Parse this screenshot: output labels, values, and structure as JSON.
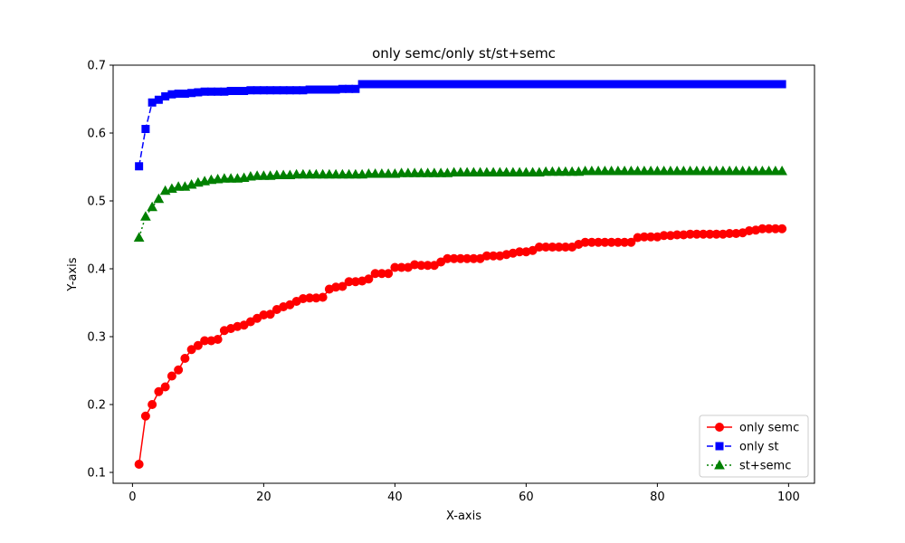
{
  "chart_data": {
    "type": "line",
    "title": "only semc/only st/st+semc",
    "xlabel": "X-axis",
    "ylabel": "Y-axis",
    "xlim": [
      -2.95,
      103.95
    ],
    "ylim": [
      0.084,
      0.7
    ],
    "xticks": [
      0,
      20,
      40,
      60,
      80,
      100
    ],
    "yticks": [
      0.1,
      0.2,
      0.3,
      0.4,
      0.5,
      0.6,
      0.7
    ],
    "grid": false,
    "legend_position": "lower-right",
    "x": [
      1,
      2,
      3,
      4,
      5,
      6,
      7,
      8,
      9,
      10,
      11,
      12,
      13,
      14,
      15,
      16,
      17,
      18,
      19,
      20,
      21,
      22,
      23,
      24,
      25,
      26,
      27,
      28,
      29,
      30,
      31,
      32,
      33,
      34,
      35,
      36,
      37,
      38,
      39,
      40,
      41,
      42,
      43,
      44,
      45,
      46,
      47,
      48,
      49,
      50,
      51,
      52,
      53,
      54,
      55,
      56,
      57,
      58,
      59,
      60,
      61,
      62,
      63,
      64,
      65,
      66,
      67,
      68,
      69,
      70,
      71,
      72,
      73,
      74,
      75,
      76,
      77,
      78,
      79,
      80,
      81,
      82,
      83,
      84,
      85,
      86,
      87,
      88,
      89,
      90,
      91,
      92,
      93,
      94,
      95,
      96,
      97,
      98,
      99
    ],
    "series": [
      {
        "name": "only semc",
        "color": "#ff0000",
        "line_style": "solid",
        "marker": "circle",
        "values": [
          0.112,
          0.183,
          0.2,
          0.219,
          0.226,
          0.242,
          0.251,
          0.268,
          0.281,
          0.287,
          0.294,
          0.294,
          0.296,
          0.309,
          0.312,
          0.315,
          0.317,
          0.322,
          0.327,
          0.332,
          0.333,
          0.34,
          0.344,
          0.347,
          0.352,
          0.356,
          0.357,
          0.357,
          0.358,
          0.37,
          0.373,
          0.374,
          0.381,
          0.381,
          0.382,
          0.385,
          0.393,
          0.393,
          0.393,
          0.402,
          0.402,
          0.402,
          0.406,
          0.405,
          0.405,
          0.405,
          0.41,
          0.415,
          0.415,
          0.415,
          0.415,
          0.415,
          0.415,
          0.419,
          0.419,
          0.419,
          0.421,
          0.423,
          0.425,
          0.425,
          0.427,
          0.432,
          0.432,
          0.432,
          0.432,
          0.432,
          0.432,
          0.436,
          0.439,
          0.439,
          0.439,
          0.439,
          0.439,
          0.439,
          0.439,
          0.439,
          0.446,
          0.447,
          0.447,
          0.447,
          0.449,
          0.449,
          0.45,
          0.45,
          0.451,
          0.451,
          0.451,
          0.451,
          0.451,
          0.451,
          0.452,
          0.452,
          0.453,
          0.456,
          0.457,
          0.459,
          0.459,
          0.459,
          0.459
        ]
      },
      {
        "name": "only st",
        "color": "#0000ff",
        "line_style": "dashed",
        "marker": "square",
        "values": [
          0.551,
          0.606,
          0.645,
          0.649,
          0.654,
          0.657,
          0.658,
          0.658,
          0.659,
          0.66,
          0.661,
          0.661,
          0.661,
          0.661,
          0.662,
          0.662,
          0.662,
          0.663,
          0.663,
          0.663,
          0.663,
          0.663,
          0.663,
          0.663,
          0.663,
          0.663,
          0.664,
          0.664,
          0.664,
          0.664,
          0.664,
          0.665,
          0.665,
          0.665,
          0.672,
          0.672,
          0.672,
          0.672,
          0.672,
          0.672,
          0.672,
          0.672,
          0.672,
          0.672,
          0.672,
          0.672,
          0.672,
          0.672,
          0.672,
          0.672,
          0.672,
          0.672,
          0.672,
          0.672,
          0.672,
          0.672,
          0.672,
          0.672,
          0.672,
          0.672,
          0.672,
          0.672,
          0.672,
          0.672,
          0.672,
          0.672,
          0.672,
          0.672,
          0.672,
          0.672,
          0.672,
          0.672,
          0.672,
          0.672,
          0.672,
          0.672,
          0.672,
          0.672,
          0.672,
          0.672,
          0.672,
          0.672,
          0.672,
          0.672,
          0.672,
          0.672,
          0.672,
          0.672,
          0.672,
          0.672,
          0.672,
          0.672,
          0.672,
          0.672,
          0.672,
          0.672,
          0.672,
          0.672,
          0.672
        ]
      },
      {
        "name": "st+semc",
        "color": "#008000",
        "line_style": "dotted",
        "marker": "triangle",
        "values": [
          0.446,
          0.477,
          0.491,
          0.503,
          0.515,
          0.518,
          0.521,
          0.521,
          0.524,
          0.527,
          0.529,
          0.531,
          0.532,
          0.533,
          0.533,
          0.533,
          0.534,
          0.536,
          0.537,
          0.537,
          0.537,
          0.538,
          0.538,
          0.538,
          0.539,
          0.539,
          0.539,
          0.539,
          0.539,
          0.539,
          0.539,
          0.539,
          0.539,
          0.539,
          0.539,
          0.54,
          0.54,
          0.54,
          0.54,
          0.54,
          0.541,
          0.541,
          0.541,
          0.541,
          0.541,
          0.541,
          0.541,
          0.541,
          0.542,
          0.542,
          0.542,
          0.542,
          0.542,
          0.542,
          0.542,
          0.542,
          0.542,
          0.542,
          0.542,
          0.542,
          0.542,
          0.542,
          0.543,
          0.543,
          0.543,
          0.543,
          0.543,
          0.543,
          0.544,
          0.544,
          0.544,
          0.544,
          0.544,
          0.544,
          0.544,
          0.544,
          0.544,
          0.544,
          0.544,
          0.544,
          0.544,
          0.544,
          0.544,
          0.544,
          0.544,
          0.544,
          0.544,
          0.544,
          0.544,
          0.544,
          0.544,
          0.544,
          0.544,
          0.544,
          0.544,
          0.544,
          0.544,
          0.544,
          0.544
        ]
      }
    ]
  }
}
